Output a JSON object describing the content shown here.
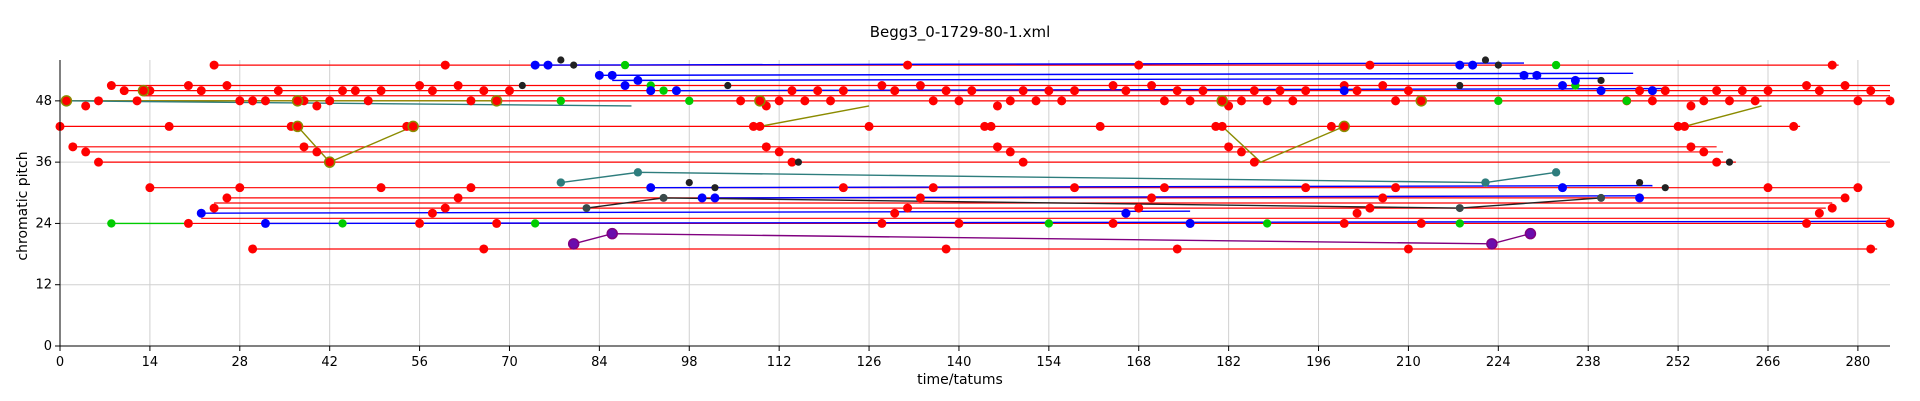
{
  "chart_data": {
    "type": "scatter",
    "title": "Begg3_0-1729-80-1.xml",
    "xlabel": "time/tatums",
    "ylabel": "chromatic pitch",
    "xlim": [
      0,
      285
    ],
    "ylim": [
      0,
      56
    ],
    "xticks": [
      0,
      14,
      28,
      42,
      56,
      70,
      84,
      98,
      112,
      126,
      140,
      154,
      168,
      182,
      196,
      210,
      224,
      238,
      252,
      266,
      280
    ],
    "yticks": [
      0,
      12,
      24,
      36,
      48
    ],
    "grid": true,
    "colors": {
      "red": "#ff0000",
      "blue": "#0000ff",
      "green": "#00cc00",
      "olive": "#8b8b00",
      "teal": "#2e7d7d",
      "purple": "#800080",
      "dark": "#222222",
      "violet": "#6a0dad"
    },
    "red_lines": [
      {
        "y": 55,
        "x1": 24,
        "x2": 277
      },
      {
        "y": 51,
        "x1": 8,
        "x2": 285
      },
      {
        "y": 50,
        "x1": 10,
        "x2": 285
      },
      {
        "y": 49,
        "x1": 13,
        "x2": 285
      },
      {
        "y": 48,
        "x1": 2,
        "x2": 285
      },
      {
        "y": 43,
        "x1": 0,
        "x2": 271
      },
      {
        "y": 39,
        "x1": 2,
        "x2": 258
      },
      {
        "y": 38,
        "x1": 4,
        "x2": 259
      },
      {
        "y": 36,
        "x1": 6,
        "x2": 261
      },
      {
        "y": 31,
        "x1": 14,
        "x2": 280
      },
      {
        "y": 29,
        "x1": 26,
        "x2": 278
      },
      {
        "y": 28,
        "x1": 24,
        "x2": 276
      },
      {
        "y": 27,
        "x1": 24,
        "x2": 275
      },
      {
        "y": 25,
        "x1": 22,
        "x2": 285
      },
      {
        "y": 24,
        "x1": 20,
        "x2": 285
      },
      {
        "y": 19,
        "x1": 30,
        "x2": 283
      }
    ],
    "blue_lines": [
      {
        "y": 55,
        "x1": 74,
        "x2": 228
      },
      {
        "y": 53,
        "x1": 84,
        "x2": 245
      },
      {
        "y": 52,
        "x1": 86,
        "x2": 240
      },
      {
        "y": 50,
        "x1": 96,
        "x2": 250
      },
      {
        "y": 31,
        "x1": 92,
        "x2": 248
      },
      {
        "y": 29,
        "x1": 102,
        "x2": 246
      },
      {
        "y": 26,
        "x1": 22,
        "x2": 176
      },
      {
        "y": 24,
        "x1": 32,
        "x2": 285
      }
    ],
    "linked_lines": [
      {
        "color": "olive",
        "points": [
          [
            1,
            48
          ],
          [
            68,
            48
          ]
        ]
      },
      {
        "color": "olive",
        "points": [
          [
            37,
            43
          ],
          [
            42,
            36
          ],
          [
            55,
            43
          ]
        ]
      },
      {
        "color": "olive",
        "points": [
          [
            109,
            43
          ],
          [
            126,
            47
          ]
        ]
      },
      {
        "color": "olive",
        "points": [
          [
            181,
            43
          ],
          [
            187,
            36
          ],
          [
            200,
            43
          ]
        ]
      },
      {
        "color": "olive",
        "points": [
          [
            253,
            43
          ],
          [
            265,
            47
          ]
        ]
      },
      {
        "color": "teal",
        "points": [
          [
            78,
            32
          ],
          [
            90,
            34
          ],
          [
            222,
            32
          ],
          [
            233,
            34
          ]
        ]
      },
      {
        "color": "teal",
        "points": [
          [
            1,
            48
          ],
          [
            89,
            47
          ]
        ]
      },
      {
        "color": "green",
        "points": [
          [
            8,
            24
          ],
          [
            20,
            24
          ]
        ]
      },
      {
        "color": "purple",
        "points": [
          [
            80,
            20
          ],
          [
            86,
            22
          ],
          [
            223,
            20
          ],
          [
            229,
            22
          ]
        ]
      },
      {
        "color": "dark",
        "points": [
          [
            82,
            27
          ],
          [
            94,
            29
          ],
          [
            218,
            27
          ],
          [
            240,
            29
          ]
        ]
      }
    ],
    "points": {
      "red": [
        [
          0,
          43
        ],
        [
          1,
          48
        ],
        [
          2,
          39
        ],
        [
          4,
          47
        ],
        [
          4,
          38
        ],
        [
          6,
          48
        ],
        [
          6,
          36
        ],
        [
          8,
          51
        ],
        [
          10,
          50
        ],
        [
          12,
          48
        ],
        [
          14,
          50
        ],
        [
          14,
          31
        ],
        [
          17,
          43
        ],
        [
          20,
          51
        ],
        [
          20,
          24
        ],
        [
          22,
          50
        ],
        [
          24,
          55
        ],
        [
          24,
          27
        ],
        [
          26,
          51
        ],
        [
          26,
          29
        ],
        [
          28,
          48
        ],
        [
          28,
          31
        ],
        [
          30,
          48
        ],
        [
          30,
          19
        ],
        [
          32,
          48
        ],
        [
          34,
          50
        ],
        [
          36,
          43
        ],
        [
          37,
          43
        ],
        [
          38,
          48
        ],
        [
          38,
          39
        ],
        [
          40,
          47
        ],
        [
          40,
          38
        ],
        [
          42,
          48
        ],
        [
          42,
          36
        ],
        [
          44,
          50
        ],
        [
          46,
          50
        ],
        [
          48,
          48
        ],
        [
          50,
          50
        ],
        [
          50,
          31
        ],
        [
          54,
          43
        ],
        [
          56,
          51
        ],
        [
          56,
          24
        ],
        [
          58,
          50
        ],
        [
          58,
          26
        ],
        [
          60,
          55
        ],
        [
          60,
          27
        ],
        [
          62,
          51
        ],
        [
          62,
          29
        ],
        [
          64,
          48
        ],
        [
          64,
          31
        ],
        [
          66,
          50
        ],
        [
          66,
          19
        ],
        [
          68,
          48
        ],
        [
          68,
          24
        ],
        [
          70,
          50
        ],
        [
          106,
          48
        ],
        [
          108,
          43
        ],
        [
          109,
          43
        ],
        [
          110,
          47
        ],
        [
          110,
          39
        ],
        [
          112,
          48
        ],
        [
          112,
          38
        ],
        [
          114,
          50
        ],
        [
          114,
          36
        ],
        [
          116,
          48
        ],
        [
          118,
          50
        ],
        [
          120,
          48
        ],
        [
          122,
          50
        ],
        [
          122,
          31
        ],
        [
          126,
          43
        ],
        [
          128,
          51
        ],
        [
          128,
          24
        ],
        [
          130,
          50
        ],
        [
          130,
          26
        ],
        [
          132,
          55
        ],
        [
          132,
          27
        ],
        [
          134,
          51
        ],
        [
          134,
          29
        ],
        [
          136,
          48
        ],
        [
          136,
          31
        ],
        [
          138,
          50
        ],
        [
          138,
          19
        ],
        [
          140,
          48
        ],
        [
          140,
          24
        ],
        [
          142,
          50
        ],
        [
          144,
          43
        ],
        [
          145,
          43
        ],
        [
          146,
          47
        ],
        [
          146,
          39
        ],
        [
          148,
          48
        ],
        [
          148,
          38
        ],
        [
          150,
          50
        ],
        [
          150,
          36
        ],
        [
          152,
          48
        ],
        [
          154,
          50
        ],
        [
          156,
          48
        ],
        [
          158,
          50
        ],
        [
          158,
          31
        ],
        [
          162,
          43
        ],
        [
          164,
          51
        ],
        [
          164,
          24
        ],
        [
          166,
          50
        ],
        [
          166,
          26
        ],
        [
          168,
          55
        ],
        [
          168,
          27
        ],
        [
          170,
          51
        ],
        [
          170,
          29
        ],
        [
          172,
          48
        ],
        [
          172,
          31
        ],
        [
          174,
          50
        ],
        [
          174,
          19
        ],
        [
          176,
          48
        ],
        [
          176,
          24
        ],
        [
          178,
          50
        ],
        [
          180,
          43
        ],
        [
          181,
          43
        ],
        [
          182,
          47
        ],
        [
          182,
          39
        ],
        [
          184,
          48
        ],
        [
          184,
          38
        ],
        [
          186,
          50
        ],
        [
          186,
          36
        ],
        [
          188,
          48
        ],
        [
          190,
          50
        ],
        [
          192,
          48
        ],
        [
          194,
          50
        ],
        [
          194,
          31
        ],
        [
          198,
          43
        ],
        [
          200,
          51
        ],
        [
          200,
          24
        ],
        [
          202,
          50
        ],
        [
          202,
          26
        ],
        [
          204,
          55
        ],
        [
          204,
          27
        ],
        [
          206,
          51
        ],
        [
          206,
          29
        ],
        [
          208,
          48
        ],
        [
          208,
          31
        ],
        [
          210,
          50
        ],
        [
          210,
          19
        ],
        [
          212,
          48
        ],
        [
          212,
          24
        ],
        [
          244,
          48
        ],
        [
          246,
          50
        ],
        [
          248,
          48
        ],
        [
          250,
          50
        ],
        [
          252,
          43
        ],
        [
          253,
          43
        ],
        [
          254,
          47
        ],
        [
          254,
          39
        ],
        [
          256,
          48
        ],
        [
          256,
          38
        ],
        [
          258,
          50
        ],
        [
          258,
          36
        ],
        [
          260,
          48
        ],
        [
          262,
          50
        ],
        [
          264,
          48
        ],
        [
          266,
          50
        ],
        [
          266,
          31
        ],
        [
          270,
          43
        ],
        [
          272,
          51
        ],
        [
          272,
          24
        ],
        [
          274,
          50
        ],
        [
          274,
          26
        ],
        [
          276,
          55
        ],
        [
          276,
          27
        ],
        [
          278,
          51
        ],
        [
          278,
          29
        ],
        [
          280,
          48
        ],
        [
          280,
          31
        ],
        [
          282,
          50
        ],
        [
          282,
          19
        ],
        [
          285,
          48
        ],
        [
          285,
          24
        ]
      ],
      "blue": [
        [
          74,
          55
        ],
        [
          76,
          55
        ],
        [
          84,
          53
        ],
        [
          86,
          53
        ],
        [
          88,
          51
        ],
        [
          90,
          52
        ],
        [
          92,
          50
        ],
        [
          92,
          31
        ],
        [
          96,
          50
        ],
        [
          100,
          29
        ],
        [
          102,
          29
        ],
        [
          200,
          50
        ],
        [
          218,
          55
        ],
        [
          220,
          55
        ],
        [
          228,
          53
        ],
        [
          230,
          53
        ],
        [
          234,
          51
        ],
        [
          236,
          52
        ],
        [
          240,
          50
        ],
        [
          234,
          31
        ],
        [
          246,
          29
        ],
        [
          22,
          26
        ],
        [
          32,
          24
        ],
        [
          166,
          26
        ],
        [
          176,
          24
        ],
        [
          248,
          50
        ]
      ],
      "green": [
        [
          8,
          24
        ],
        [
          44,
          24
        ],
        [
          74,
          24
        ],
        [
          78,
          48
        ],
        [
          88,
          55
        ],
        [
          92,
          51
        ],
        [
          94,
          50
        ],
        [
          98,
          48
        ],
        [
          154,
          24
        ],
        [
          188,
          24
        ],
        [
          224,
          48
        ],
        [
          233,
          55
        ],
        [
          236,
          51
        ],
        [
          244,
          48
        ],
        [
          218,
          24
        ]
      ],
      "dark": [
        [
          72,
          51
        ],
        [
          78,
          56
        ],
        [
          80,
          55
        ],
        [
          98,
          32
        ],
        [
          102,
          31
        ],
        [
          104,
          51
        ],
        [
          115,
          36
        ],
        [
          218,
          51
        ],
        [
          222,
          56
        ],
        [
          224,
          55
        ],
        [
          240,
          52
        ],
        [
          246,
          32
        ],
        [
          250,
          31
        ],
        [
          260,
          36
        ]
      ],
      "olive": [
        [
          1,
          48
        ],
        [
          13,
          50
        ],
        [
          37,
          48
        ],
        [
          37,
          43
        ],
        [
          42,
          36
        ],
        [
          55,
          43
        ],
        [
          68,
          48
        ],
        [
          109,
          48
        ],
        [
          181,
          48
        ],
        [
          200,
          43
        ],
        [
          212,
          48
        ]
      ],
      "teal": [
        [
          78,
          32
        ],
        [
          90,
          34
        ],
        [
          222,
          32
        ],
        [
          233,
          34
        ]
      ],
      "purple": [
        [
          80,
          20
        ],
        [
          86,
          22
        ],
        [
          223,
          20
        ],
        [
          229,
          22
        ]
      ],
      "teal_small": [
        [
          82,
          27
        ],
        [
          94,
          29
        ],
        [
          218,
          27
        ],
        [
          240,
          29
        ]
      ]
    }
  }
}
